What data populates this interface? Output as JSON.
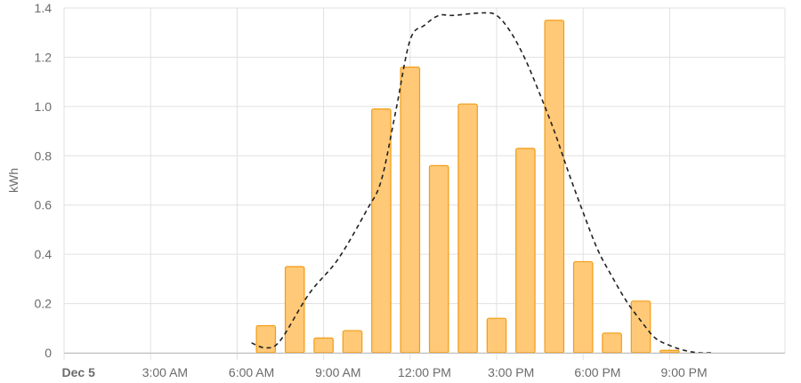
{
  "chart_data": {
    "type": "bar",
    "ylabel": "kWh",
    "ylim": [
      0,
      1.4
    ],
    "yticks": [
      "0",
      "0.2",
      "0.4",
      "0.6",
      "0.8",
      "1.0",
      "1.2",
      "1.4"
    ],
    "xlim_hours": [
      0,
      25
    ],
    "xticks": [
      {
        "label": "Dec 5",
        "hour": 0.5,
        "bold": true
      },
      {
        "label": "3:00 AM",
        "hour": 3.5
      },
      {
        "label": "6:00 AM",
        "hour": 6.5
      },
      {
        "label": "9:00 AM",
        "hour": 9.5
      },
      {
        "label": "12:00 PM",
        "hour": 12.5
      },
      {
        "label": "3:00 PM",
        "hour": 15.5
      },
      {
        "label": "6:00 PM",
        "hour": 18.5
      },
      {
        "label": "9:00 PM",
        "hour": 21.5
      }
    ],
    "grid": true,
    "legend": "none",
    "colors": {
      "bar_fill": "#ffc978",
      "bar_stroke": "#f39c12",
      "forecast_line": "#222222",
      "grid": "#e0e0e0",
      "axis": "#bdbdbd"
    },
    "series": [
      {
        "type": "bar",
        "hours": [
          7,
          8,
          9,
          10,
          11,
          12,
          13,
          14,
          15,
          16,
          17,
          18,
          19,
          20,
          21
        ],
        "values": [
          0.11,
          0.35,
          0.06,
          0.09,
          0.99,
          1.16,
          0.76,
          1.01,
          0.14,
          0.83,
          1.35,
          0.37,
          0.08,
          0.21,
          0.01
        ]
      },
      {
        "type": "line",
        "style": "dashed",
        "hours": [
          6.5,
          7.0,
          7.5,
          8.5,
          9.5,
          10.5,
          11.0,
          11.5,
          12.0,
          12.5,
          13.0,
          13.5,
          14.5,
          15.0,
          15.5,
          16.0,
          16.5,
          17.0,
          17.5,
          18.0,
          18.5,
          19.0,
          19.5,
          20.0,
          20.5,
          21.0,
          21.5,
          22.0,
          22.5
        ],
        "values": [
          0.04,
          0.02,
          0.05,
          0.24,
          0.38,
          0.58,
          0.7,
          0.98,
          1.27,
          1.33,
          1.37,
          1.37,
          1.38,
          1.37,
          1.3,
          1.19,
          1.05,
          0.9,
          0.73,
          0.57,
          0.42,
          0.31,
          0.21,
          0.13,
          0.06,
          0.03,
          0.01,
          0.0,
          0.0
        ]
      }
    ]
  }
}
